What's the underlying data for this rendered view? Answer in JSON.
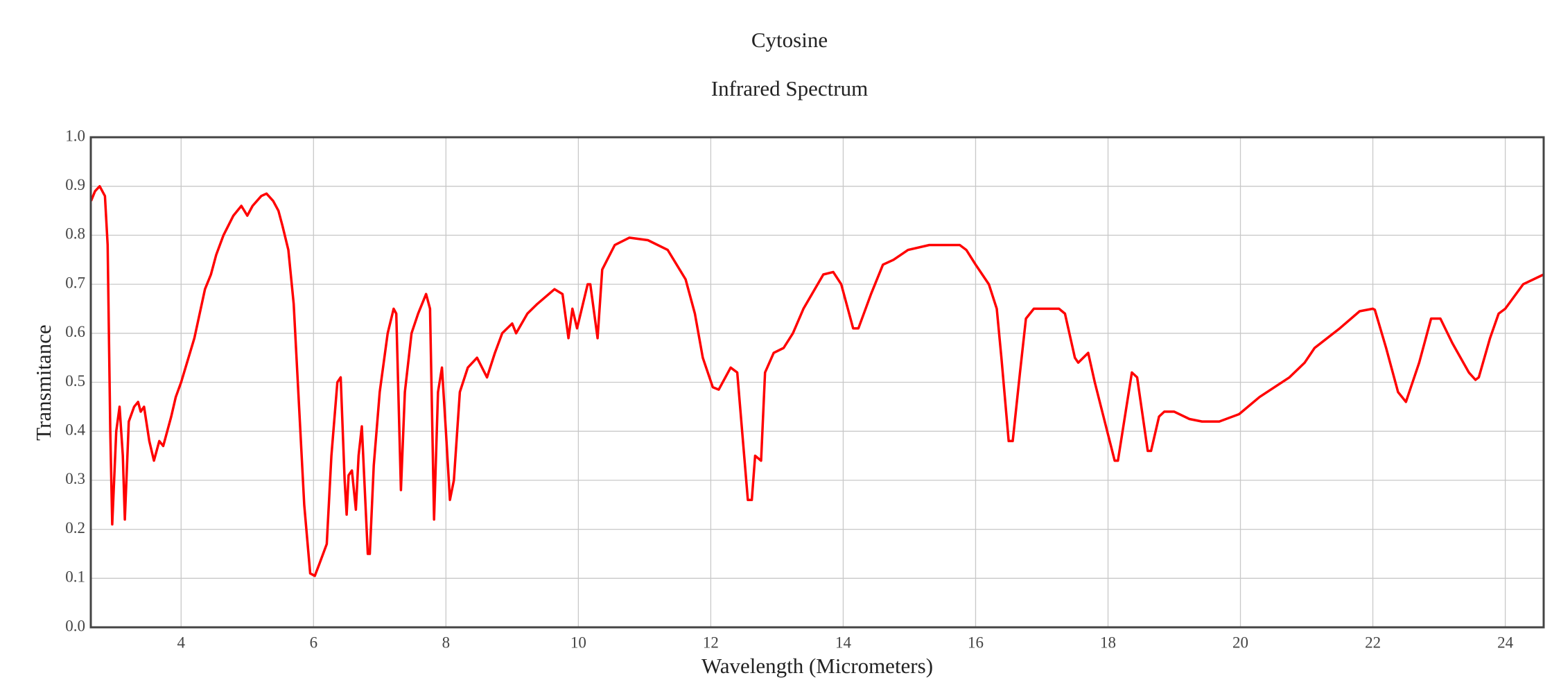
{
  "chart_data": {
    "type": "line",
    "title": "Cytosine",
    "subtitle": "Infrared Spectrum",
    "x_label": "Wavelength (Micrometers)",
    "y_label": "Transmitance",
    "xlim": [
      2.636,
      24.58
    ],
    "ylim": [
      0,
      1
    ],
    "xticks": [
      4,
      6,
      8,
      10,
      12,
      14,
      16,
      18,
      20,
      22,
      24
    ],
    "yticks": [
      {
        "value": 0,
        "label": "0.0"
      },
      0.1,
      0.2,
      0.3,
      0.4,
      0.5,
      0.6,
      0.7,
      0.8,
      0.9,
      {
        "value": 1,
        "label": "1.0"
      }
    ],
    "grid": true,
    "x": [
      2.64,
      2.7,
      2.77,
      2.85,
      2.89,
      2.93,
      2.96,
      3.02,
      3.07,
      3.12,
      3.15,
      3.21,
      3.29,
      3.35,
      3.39,
      3.44,
      3.52,
      3.59,
      3.67,
      3.73,
      3.85,
      3.92,
      4.0,
      4.2,
      4.36,
      4.45,
      4.53,
      4.64,
      4.79,
      4.91,
      5.0,
      5.08,
      5.21,
      5.29,
      5.39,
      5.47,
      5.53,
      5.62,
      5.7,
      5.86,
      5.95,
      6.02,
      6.09,
      6.2,
      6.27,
      6.36,
      6.41,
      6.47,
      6.5,
      6.53,
      6.58,
      6.64,
      6.68,
      6.73,
      6.82,
      6.85,
      6.91,
      7.0,
      7.12,
      7.21,
      7.25,
      7.32,
      7.38,
      7.48,
      7.58,
      7.7,
      7.76,
      7.82,
      7.88,
      7.94,
      8.0,
      8.06,
      8.12,
      8.21,
      8.33,
      8.47,
      8.62,
      8.74,
      8.85,
      9.0,
      9.06,
      9.23,
      9.38,
      9.64,
      9.76,
      9.85,
      9.91,
      9.98,
      10.14,
      10.18,
      10.29,
      10.36,
      10.55,
      10.77,
      11.05,
      11.35,
      11.62,
      11.76,
      11.88,
      12.03,
      12.12,
      12.3,
      12.4,
      12.56,
      12.62,
      12.67,
      12.76,
      12.82,
      12.95,
      13.1,
      13.24,
      13.4,
      13.7,
      13.85,
      13.97,
      14.15,
      14.23,
      14.42,
      14.6,
      14.76,
      14.98,
      15.3,
      15.76,
      15.86,
      16.0,
      16.2,
      16.32,
      16.39,
      16.5,
      16.56,
      16.67,
      16.76,
      16.88,
      17.26,
      17.35,
      17.5,
      17.55,
      17.7,
      17.8,
      18.1,
      18.15,
      18.36,
      18.44,
      18.6,
      18.65,
      18.77,
      18.85,
      19.0,
      19.23,
      19.42,
      19.68,
      19.98,
      20.29,
      20.74,
      20.97,
      21.12,
      21.5,
      21.8,
      22.0,
      22.03,
      22.2,
      22.38,
      22.5,
      22.7,
      22.88,
      23.02,
      23.2,
      23.45,
      23.55,
      23.6,
      23.77,
      23.9,
      24.0,
      24.27,
      24.58
    ],
    "series": [
      {
        "name": "Cytosine",
        "color": "#ff0000",
        "values": [
          0.87,
          0.89,
          0.9,
          0.88,
          0.78,
          0.4,
          0.21,
          0.4,
          0.45,
          0.35,
          0.22,
          0.42,
          0.45,
          0.46,
          0.44,
          0.45,
          0.38,
          0.34,
          0.38,
          0.37,
          0.43,
          0.47,
          0.5,
          0.59,
          0.69,
          0.72,
          0.76,
          0.8,
          0.84,
          0.86,
          0.84,
          0.86,
          0.88,
          0.885,
          0.87,
          0.85,
          0.82,
          0.77,
          0.66,
          0.25,
          0.11,
          0.105,
          0.13,
          0.17,
          0.35,
          0.5,
          0.51,
          0.3,
          0.23,
          0.31,
          0.32,
          0.24,
          0.35,
          0.41,
          0.15,
          0.15,
          0.33,
          0.48,
          0.6,
          0.65,
          0.64,
          0.28,
          0.48,
          0.6,
          0.64,
          0.68,
          0.65,
          0.22,
          0.48,
          0.53,
          0.4,
          0.26,
          0.3,
          0.48,
          0.53,
          0.55,
          0.51,
          0.56,
          0.6,
          0.62,
          0.6,
          0.64,
          0.66,
          0.69,
          0.68,
          0.59,
          0.65,
          0.61,
          0.7,
          0.7,
          0.59,
          0.73,
          0.78,
          0.795,
          0.79,
          0.77,
          0.71,
          0.64,
          0.55,
          0.49,
          0.485,
          0.53,
          0.52,
          0.26,
          0.26,
          0.35,
          0.34,
          0.52,
          0.56,
          0.57,
          0.6,
          0.65,
          0.72,
          0.725,
          0.7,
          0.61,
          0.61,
          0.68,
          0.74,
          0.75,
          0.77,
          0.78,
          0.78,
          0.77,
          0.74,
          0.7,
          0.65,
          0.55,
          0.38,
          0.38,
          0.52,
          0.63,
          0.65,
          0.65,
          0.64,
          0.55,
          0.54,
          0.56,
          0.5,
          0.34,
          0.34,
          0.52,
          0.51,
          0.36,
          0.36,
          0.43,
          0.44,
          0.44,
          0.425,
          0.42,
          0.42,
          0.435,
          0.47,
          0.51,
          0.54,
          0.57,
          0.61,
          0.645,
          0.65,
          0.648,
          0.57,
          0.48,
          0.46,
          0.54,
          0.63,
          0.63,
          0.58,
          0.52,
          0.505,
          0.51,
          0.59,
          0.64,
          0.65,
          0.7,
          0.72
        ]
      }
    ]
  }
}
